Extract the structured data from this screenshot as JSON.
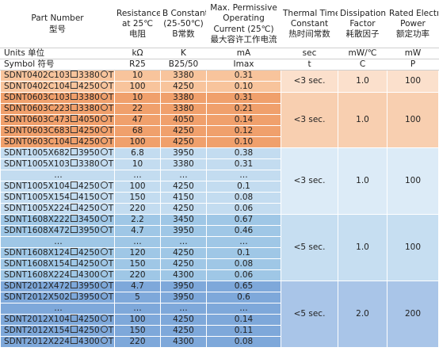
{
  "headers": {
    "part_number": [
      "Part Number",
      "型号"
    ],
    "resistance": [
      "Resistance",
      "at 25℃",
      "电阻"
    ],
    "b_constant": [
      "B Constant",
      "(25-50℃)",
      "B常数"
    ],
    "max_power": [
      "Max. Permissive",
      "Operating",
      "Current (25℃)",
      "最大容许工作电流"
    ],
    "thermal_time": [
      "Thermal Time",
      "Constant",
      "热时间常数"
    ],
    "dissipation": [
      "Dissipation",
      "Factor",
      "耗散因子"
    ],
    "rated_power": [
      "Rated Electric",
      "Power",
      "额定功率"
    ]
  },
  "units_row": [
    "Units 单位",
    "kΩ",
    "K",
    "mA",
    "sec",
    "mW/℃",
    "mW"
  ],
  "symbol_row": [
    "Symbol 符号",
    "R25",
    "B25/50",
    "Imax",
    "t",
    "C",
    "P"
  ],
  "groups": [
    {
      "thermal": "<3 sec.",
      "dissipation": "1.0",
      "power": "100",
      "rows": [
        {
          "pn_a": "SDNT0402C103",
          "pn_b": "3380",
          "pn_c": "TF",
          "r": "10",
          "b": "3380",
          "i": "0.31"
        },
        {
          "pn_a": "SDNT0402C104",
          "pn_b": "4250",
          "pn_c": "TF",
          "r": "100",
          "b": "4250",
          "i": "0.10"
        }
      ]
    },
    {
      "thermal": "<3 sec.",
      "dissipation": "1.0",
      "power": "100",
      "rows": [
        {
          "pn_a": "SDNT0603C103",
          "pn_b": "3380",
          "pn_c": "TF",
          "r": "10",
          "b": "3380",
          "i": "0.31"
        },
        {
          "pn_a": "SDNT0603C223",
          "pn_b": "3380",
          "pn_c": "TF",
          "r": "22",
          "b": "3380",
          "i": "0.21"
        },
        {
          "pn_a": "SDNT0603C473",
          "pn_b": "4050",
          "pn_c": "TF",
          "r": "47",
          "b": "4050",
          "i": "0.14"
        },
        {
          "pn_a": "SDNT0603C683",
          "pn_b": "4250",
          "pn_c": "TF",
          "r": "68",
          "b": "4250",
          "i": "0.12"
        },
        {
          "pn_a": "SDNT0603C104",
          "pn_b": "4250",
          "pn_c": "TF",
          "r": "100",
          "b": "4250",
          "i": "0.10"
        }
      ]
    },
    {
      "thermal": "<3 sec.",
      "dissipation": "1.0",
      "power": "100",
      "rows": [
        {
          "pn_a": "SDNT1005X682",
          "pn_b": "3950",
          "pn_c": "TF",
          "r": "6.8",
          "b": "3950",
          "i": "0.38"
        },
        {
          "pn_a": "SDNT1005X103",
          "pn_b": "3380",
          "pn_c": "TF",
          "r": "10",
          "b": "3380",
          "i": "0.31"
        },
        {
          "ellipsis": "…",
          "r": "…",
          "b": "…",
          "i": "…"
        },
        {
          "pn_a": "SDNT1005X104",
          "pn_b": "4250",
          "pn_c": "TF",
          "r": "100",
          "b": "4250",
          "i": "0.1"
        },
        {
          "pn_a": "SDNT1005X154",
          "pn_b": "4150",
          "pn_c": "TF",
          "r": "150",
          "b": "4150",
          "i": "0.08"
        },
        {
          "pn_a": "SDNT1005X224",
          "pn_b": "4250",
          "pn_c": "TF",
          "r": "220",
          "b": "4250",
          "i": "0.06"
        }
      ]
    },
    {
      "thermal": "<5 sec.",
      "dissipation": "1.0",
      "power": "100",
      "rows": [
        {
          "pn_a": "SDNT1608X222",
          "pn_b": "3450",
          "pn_c": "TF",
          "r": "2.2",
          "b": "3450",
          "i": "0.67"
        },
        {
          "pn_a": "SDNT1608X472",
          "pn_b": "3950",
          "pn_c": "TF",
          "r": "4.7",
          "b": "3950",
          "i": "0.46"
        },
        {
          "ellipsis": "…",
          "r": "…",
          "b": "…",
          "i": "…"
        },
        {
          "pn_a": "SDNT1608X124",
          "pn_b": "4250",
          "pn_c": "TF",
          "r": "120",
          "b": "4250",
          "i": "0.1"
        },
        {
          "pn_a": "SDNT1608X154",
          "pn_b": "4250",
          "pn_c": "TF",
          "r": "150",
          "b": "4250",
          "i": "0.08"
        },
        {
          "pn_a": "SDNT1608X224",
          "pn_b": "4300",
          "pn_c": "TF",
          "r": "220",
          "b": "4300",
          "i": "0.06"
        }
      ]
    },
    {
      "thermal": "<5 sec.",
      "dissipation": "2.0",
      "power": "200",
      "rows": [
        {
          "pn_a": "SDNT2012X472",
          "pn_b": "3950",
          "pn_c": "TF",
          "r": "4.7",
          "b": "3950",
          "i": "0.65"
        },
        {
          "pn_a": "SDNT2012X502",
          "pn_b": "3950",
          "pn_c": "TF",
          "r": "5",
          "b": "3950",
          "i": "0.6"
        },
        {
          "ellipsis": "…",
          "r": "…",
          "b": "…",
          "i": "…"
        },
        {
          "pn_a": "SDNT2012X104",
          "pn_b": "4250",
          "pn_c": "TF",
          "r": "100",
          "b": "4250",
          "i": "0.14"
        },
        {
          "pn_a": "SDNT2012X154",
          "pn_b": "4250",
          "pn_c": "TF",
          "r": "150",
          "b": "4250",
          "i": "0.11"
        },
        {
          "pn_a": "SDNT2012X224",
          "pn_b": "4300",
          "pn_c": "TF",
          "r": "220",
          "b": "4300",
          "i": "0.08"
        }
      ]
    }
  ],
  "colors": {
    "group1_part": "#f8c49c",
    "group1_meta": "#fbe0cc",
    "group2_part": "#f0a06c",
    "group2_meta": "#f8cfb0",
    "group3_part": "#c3dcf0",
    "group3_meta": "#dcebf7",
    "group4_part": "#9fc7e6",
    "group4_meta": "#c6def1",
    "group5_part": "#7ea8da",
    "group5_meta": "#a9c5e8"
  },
  "icons": {
    "separator_box": "square-outline-icon",
    "separator_circle": "circle-outline-icon"
  }
}
